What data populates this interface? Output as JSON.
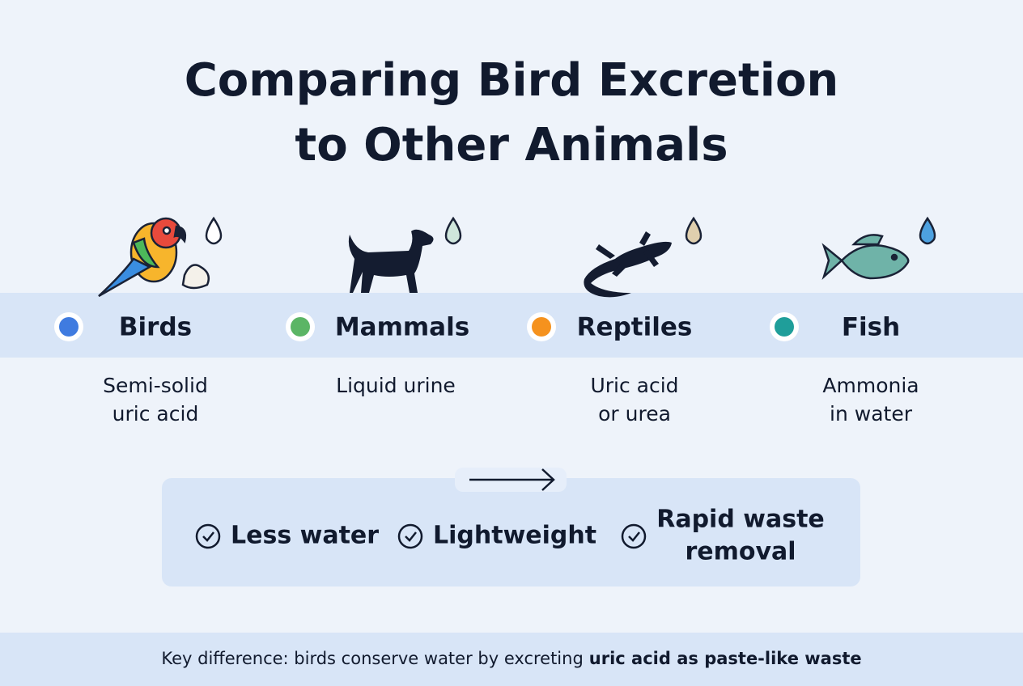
{
  "title": {
    "lines": [
      "Comparing Bird Excretion",
      "to Other Animals"
    ]
  },
  "animals": [
    {
      "name": "Birds",
      "color": "#3f7be0",
      "description": [
        "Semi-solid",
        "uric acid"
      ]
    },
    {
      "name": "Mammals",
      "color": "#5bb565",
      "description": [
        "Liquid urine"
      ]
    },
    {
      "name": "Reptiles",
      "color": "#f5921e",
      "description": [
        "Uric acid",
        "or urea"
      ]
    },
    {
      "name": "Fish",
      "color": "#1f9e9a",
      "description": [
        "Ammonia",
        "in water"
      ]
    }
  ],
  "benefits": [
    {
      "lines": [
        "Less water"
      ]
    },
    {
      "lines": [
        "Lightweight"
      ]
    },
    {
      "lines": [
        "Rapid waste",
        "removal"
      ]
    }
  ],
  "footer": {
    "text": "Key difference: birds conserve water by excreting",
    "emphasis": "uric acid as paste-like waste"
  }
}
